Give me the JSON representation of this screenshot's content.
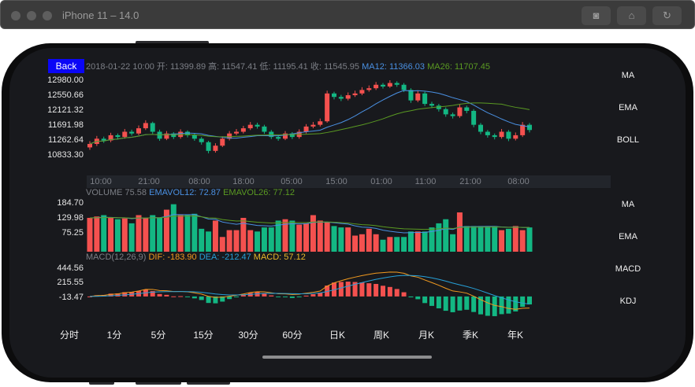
{
  "window": {
    "title": "iPhone 11 – 14.0",
    "buttons": [
      "screenshot-icon",
      "home-icon",
      "rotate-icon"
    ]
  },
  "header": {
    "back_label": "Back",
    "datetime": "2018-01-22 10:00",
    "open": "开: 11399.89",
    "high": "高: 11547.41",
    "low": "低: 11195.41",
    "close": "收: 11545.95",
    "ma12": "MA12: 11366.03",
    "ma26": "MA26: 11707.45"
  },
  "price_axis": [
    "12980.00",
    "12550.66",
    "12121.32",
    "11691.98",
    "11262.64",
    "10833.30"
  ],
  "time_axis": [
    "10:00",
    "21:00",
    "08:00",
    "18:00",
    "05:00",
    "15:00",
    "01:00",
    "11:00",
    "21:00",
    "08:00"
  ],
  "volume_header": {
    "volume": "VOLUME 75.58",
    "emavol12": "EMAVOL12: 72.87",
    "emavol26": "EMAVOL26: 77.12"
  },
  "volume_axis": [
    "184.70",
    "129.98",
    "75.25"
  ],
  "macd_header": {
    "label": "MACD(12,26,9)",
    "dif": "DIF: -183.90",
    "dea": "DEA: -212.47",
    "macd": "MACD: 57.12"
  },
  "macd_axis": [
    "444.56",
    "215.55",
    "-13.47"
  ],
  "main_indicators": [
    "MA",
    "EMA",
    "BOLL"
  ],
  "sub_indicators": [
    "MA",
    "EMA",
    "MACD",
    "KDJ"
  ],
  "period_tabs": [
    "分时",
    "1分",
    "5分",
    "15分",
    "30分",
    "60分",
    "日K",
    "周K",
    "月K",
    "季K",
    "年K"
  ],
  "colors": {
    "up": "#f4514f",
    "down": "#13b783",
    "ma12": "#4a90e2",
    "ma26": "#5a9a22",
    "dif": "#f29a1f",
    "dea": "#26a0d8",
    "macd": "#e8b82a",
    "back": "#0a06f6"
  },
  "chart_data": {
    "type": "candlestick",
    "y_range": [
      10833.3,
      12980.0
    ],
    "candles": [
      [
        11050,
        11230,
        10980,
        11150
      ],
      [
        11150,
        11380,
        11090,
        11300
      ],
      [
        11300,
        11360,
        11180,
        11250
      ],
      [
        11250,
        11470,
        11200,
        11400
      ],
      [
        11400,
        11450,
        11280,
        11350
      ],
      [
        11350,
        11580,
        11300,
        11500
      ],
      [
        11500,
        11560,
        11390,
        11450
      ],
      [
        11450,
        11680,
        11400,
        11600
      ],
      [
        11600,
        11830,
        11550,
        11750
      ],
      [
        11750,
        11790,
        11440,
        11500
      ],
      [
        11500,
        11560,
        11240,
        11300
      ],
      [
        11300,
        11520,
        11260,
        11450
      ],
      [
        11450,
        11490,
        11290,
        11350
      ],
      [
        11350,
        11570,
        11300,
        11500
      ],
      [
        11500,
        11540,
        11340,
        11400
      ],
      [
        11400,
        11450,
        11240,
        11300
      ],
      [
        11300,
        11350,
        11130,
        11200
      ],
      [
        11200,
        11240,
        10880,
        10950
      ],
      [
        10950,
        11170,
        10900,
        11100
      ],
      [
        11100,
        11370,
        11060,
        11300
      ],
      [
        11300,
        11520,
        11250,
        11450
      ],
      [
        11450,
        11580,
        11400,
        11500
      ],
      [
        11500,
        11670,
        11450,
        11600
      ],
      [
        11600,
        11780,
        11550,
        11700
      ],
      [
        11700,
        11760,
        11590,
        11650
      ],
      [
        11650,
        11700,
        11440,
        11500
      ],
      [
        11500,
        11550,
        11290,
        11350
      ],
      [
        11350,
        11400,
        11240,
        11300
      ],
      [
        11300,
        11520,
        11260,
        11450
      ],
      [
        11450,
        11490,
        11290,
        11350
      ],
      [
        11350,
        11570,
        11300,
        11500
      ],
      [
        11500,
        11720,
        11450,
        11650
      ],
      [
        11650,
        11780,
        11600,
        11700
      ],
      [
        11700,
        11880,
        11650,
        11800
      ],
      [
        11800,
        12680,
        11760,
        12600
      ],
      [
        12600,
        12650,
        12430,
        12500
      ],
      [
        12500,
        12560,
        12380,
        12450
      ],
      [
        12450,
        12630,
        12400,
        12550
      ],
      [
        12550,
        12680,
        12500,
        12600
      ],
      [
        12600,
        12780,
        12550,
        12700
      ],
      [
        12700,
        12830,
        12650,
        12750
      ],
      [
        12750,
        12930,
        12700,
        12850
      ],
      [
        12850,
        12900,
        12740,
        12800
      ],
      [
        12800,
        12980,
        12760,
        12900
      ],
      [
        12900,
        12950,
        12790,
        12850
      ],
      [
        12850,
        12900,
        12640,
        12700
      ],
      [
        12700,
        12750,
        12330,
        12400
      ],
      [
        12400,
        12680,
        12350,
        12600
      ],
      [
        12600,
        12650,
        12240,
        12300
      ],
      [
        12300,
        12360,
        12180,
        12250
      ],
      [
        12250,
        12300,
        12080,
        12150
      ],
      [
        12150,
        12200,
        11930,
        12000
      ],
      [
        12000,
        12050,
        11880,
        11950
      ],
      [
        11950,
        12280,
        11900,
        12200
      ],
      [
        12200,
        12250,
        12030,
        12100
      ],
      [
        12100,
        12150,
        11630,
        11700
      ],
      [
        11700,
        11750,
        11430,
        11500
      ],
      [
        11500,
        11550,
        11330,
        11400
      ],
      [
        11400,
        11450,
        11280,
        11350
      ],
      [
        11350,
        11580,
        11300,
        11500
      ],
      [
        11500,
        11550,
        11230,
        11300
      ],
      [
        11300,
        11480,
        11250,
        11400
      ],
      [
        11400,
        11780,
        11350,
        11700
      ],
      [
        11700,
        11750,
        11480,
        11550
      ]
    ],
    "volume": [
      130,
      135,
      140,
      130,
      125,
      128,
      110,
      140,
      130,
      140,
      130,
      160,
      180,
      140,
      140,
      145,
      90,
      80,
      120,
      60,
      85,
      85,
      130,
      85,
      80,
      95,
      95,
      120,
      125,
      120,
      105,
      110,
      140,
      120,
      115,
      100,
      95,
      95,
      65,
      70,
      90,
      70,
      50,
      60,
      60,
      60,
      80,
      80,
      80,
      95,
      110,
      125,
      70,
      150,
      100,
      100,
      100,
      100,
      100,
      85,
      90,
      100,
      85,
      95
    ],
    "volume_range": [
      6,
      184.7
    ],
    "macd_range": [
      -348,
      444.56
    ]
  }
}
